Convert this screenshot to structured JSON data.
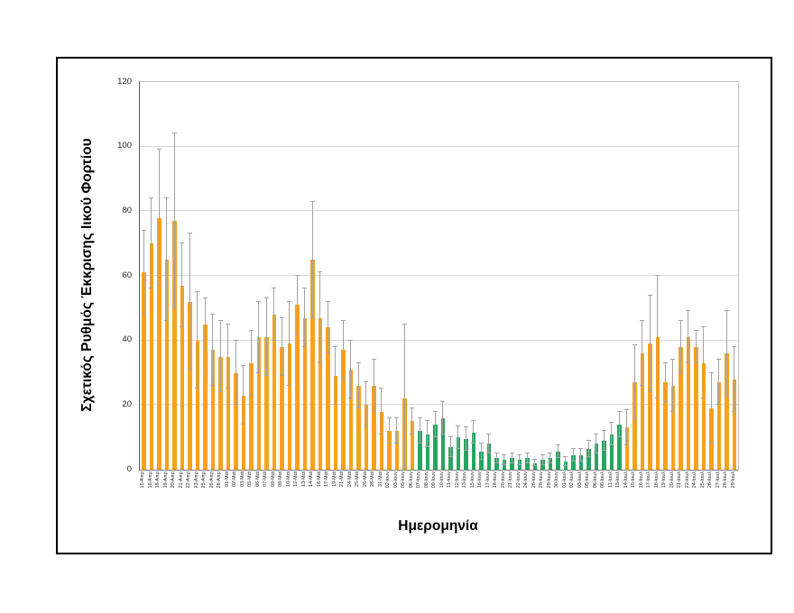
{
  "chart_data": {
    "type": "bar",
    "title": "",
    "xlabel": "Ημερομηνία",
    "ylabel": "Σχετικός Ρυθμός Έκκρισης Ιικού Φορτίου",
    "ylim": [
      0,
      120
    ],
    "yticks": [
      0,
      20,
      40,
      60,
      80,
      100,
      120
    ],
    "grid": "horizontal",
    "legend": "none",
    "error_bars": true,
    "colors": {
      "orange": "#f8a11c",
      "green": "#27a561",
      "error": "#a3a3a3"
    },
    "bars": [
      {
        "label": "15-Απρ",
        "v": 61,
        "e": 13
      },
      {
        "label": "16-Απρ",
        "v": 70,
        "e": 14
      },
      {
        "label": "18-Απρ",
        "v": 78,
        "e": 21
      },
      {
        "label": "19-Απρ",
        "v": 65,
        "e": 19
      },
      {
        "label": "20-Απρ",
        "v": 77,
        "e": 27
      },
      {
        "label": "21-Απρ",
        "v": 57,
        "e": 13
      },
      {
        "label": "22-Απρ",
        "v": 52,
        "e": 21
      },
      {
        "label": "23-Απρ",
        "v": 40,
        "e": 15
      },
      {
        "label": "25-Απρ",
        "v": 45,
        "e": 8
      },
      {
        "label": "26-Απρ",
        "v": 37,
        "e": 11
      },
      {
        "label": "28-Απρ",
        "v": 35,
        "e": 11
      },
      {
        "label": "01-Μαϊ",
        "v": 35,
        "e": 10
      },
      {
        "label": "02-Μαϊ",
        "v": 30,
        "e": 10
      },
      {
        "label": "03-Μαϊ",
        "v": 23,
        "e": 9
      },
      {
        "label": "05-Μαϊ",
        "v": 33,
        "e": 10
      },
      {
        "label": "06-Μαϊ",
        "v": 41,
        "e": 11
      },
      {
        "label": "07-Μαϊ",
        "v": 41,
        "e": 12
      },
      {
        "label": "08-Μαϊ",
        "v": 48,
        "e": 8
      },
      {
        "label": "09-Μαϊ",
        "v": 38,
        "e": 9
      },
      {
        "label": "10-Μαϊ",
        "v": 39,
        "e": 13
      },
      {
        "label": "12-Μαϊ",
        "v": 51,
        "e": 9
      },
      {
        "label": "13-Μαϊ",
        "v": 47,
        "e": 9
      },
      {
        "label": "14-Μαϊ",
        "v": 65,
        "e": 18
      },
      {
        "label": "16-Μαϊ",
        "v": 47,
        "e": 14
      },
      {
        "label": "17-Μαϊ",
        "v": 44,
        "e": 8
      },
      {
        "label": "19-Μαϊ",
        "v": 29,
        "e": 9
      },
      {
        "label": "21-Μαϊ",
        "v": 37,
        "e": 9
      },
      {
        "label": "24-Μαϊ",
        "v": 31,
        "e": 9
      },
      {
        "label": "25-Μαϊ",
        "v": 26,
        "e": 7
      },
      {
        "label": "26-Μαϊ",
        "v": 20,
        "e": 7
      },
      {
        "label": "28-Μαϊ",
        "v": 26,
        "e": 8
      },
      {
        "label": "31-Μαϊ",
        "v": 18,
        "e": 7
      },
      {
        "label": "02-Ιουν",
        "v": 12,
        "e": 4
      },
      {
        "label": "03-Ιουν",
        "v": 12,
        "e": 4
      },
      {
        "label": "05-Ιουν",
        "v": 22,
        "e": 23
      },
      {
        "label": "06-Ιουν",
        "v": 15,
        "e": 4
      },
      {
        "label": "07-Ιουν",
        "v": 12,
        "e": 4,
        "g": 1
      },
      {
        "label": "08-Ιουν",
        "v": 11,
        "e": 4,
        "g": 1
      },
      {
        "label": "09-Ιουν",
        "v": 14,
        "e": 4,
        "g": 1
      },
      {
        "label": "10-Ιουν",
        "v": 16,
        "e": 5,
        "g": 1
      },
      {
        "label": "11-Ιουν",
        "v": 7,
        "e": 3,
        "g": 1
      },
      {
        "label": "12-Ιουν",
        "v": 10,
        "e": 3.5,
        "g": 1
      },
      {
        "label": "13-Ιουν",
        "v": 9.5,
        "e": 3.5,
        "g": 1
      },
      {
        "label": "15-Ιουν",
        "v": 11.5,
        "e": 3.5,
        "g": 1
      },
      {
        "label": "16-Ιουν",
        "v": 5.5,
        "e": 2.5,
        "g": 1
      },
      {
        "label": "17-Ιουν",
        "v": 8,
        "e": 3,
        "g": 1
      },
      {
        "label": "18-Ιουν",
        "v": 3.5,
        "e": 1.5,
        "g": 1
      },
      {
        "label": "20-Ιουν",
        "v": 3,
        "e": 1.5,
        "g": 1
      },
      {
        "label": "21-Ιουν",
        "v": 3.5,
        "e": 1.5,
        "g": 1
      },
      {
        "label": "22-Ιουν",
        "v": 3,
        "e": 1.5,
        "g": 1
      },
      {
        "label": "24-Ιουν",
        "v": 3.5,
        "e": 1.5,
        "g": 1
      },
      {
        "label": "26-Ιουν",
        "v": 2,
        "e": 1,
        "g": 1
      },
      {
        "label": "28-Ιουν",
        "v": 3,
        "e": 1.5,
        "g": 1
      },
      {
        "label": "29-Ιουν",
        "v": 3.5,
        "e": 1.5,
        "g": 1
      },
      {
        "label": "30-Ιουν",
        "v": 5.5,
        "e": 2,
        "g": 1
      },
      {
        "label": "01-Ιουλ",
        "v": 2.5,
        "e": 1.5,
        "g": 1
      },
      {
        "label": "02-Ιουλ",
        "v": 4.5,
        "e": 2,
        "g": 1
      },
      {
        "label": "03-Ιουλ",
        "v": 4.5,
        "e": 2,
        "g": 1
      },
      {
        "label": "05-Ιουλ",
        "v": 6.5,
        "e": 2.5,
        "g": 1
      },
      {
        "label": "06-Ιουλ",
        "v": 8,
        "e": 3,
        "g": 1
      },
      {
        "label": "08-Ιουλ",
        "v": 9,
        "e": 3,
        "g": 1
      },
      {
        "label": "11-Ιουλ",
        "v": 11,
        "e": 3.5,
        "g": 1
      },
      {
        "label": "13-Ιουλ",
        "v": 14,
        "e": 4,
        "g": 1
      },
      {
        "label": "14-Ιουλ",
        "v": 13,
        "e": 5.5
      },
      {
        "label": "15-Ιουλ",
        "v": 27,
        "e": 11.5
      },
      {
        "label": "16-Ιουλ",
        "v": 36,
        "e": 10
      },
      {
        "label": "17-Ιουλ",
        "v": 39,
        "e": 15
      },
      {
        "label": "18-Ιουλ",
        "v": 41,
        "e": 19
      },
      {
        "label": "19-Ιουλ",
        "v": 27,
        "e": 6
      },
      {
        "label": "20-Ιουλ",
        "v": 26,
        "e": 8
      },
      {
        "label": "21-Ιουλ",
        "v": 38,
        "e": 8
      },
      {
        "label": "22-Ιουλ",
        "v": 41,
        "e": 8
      },
      {
        "label": "24-Ιουλ",
        "v": 38,
        "e": 5
      },
      {
        "label": "25-Ιουλ",
        "v": 33,
        "e": 11
      },
      {
        "label": "26-Ιουλ",
        "v": 19,
        "e": 11
      },
      {
        "label": "27-Ιουλ",
        "v": 27,
        "e": 7
      },
      {
        "label": "28-Ιουλ",
        "v": 36,
        "e": 13
      },
      {
        "label": "29-Ιουλ",
        "v": 28,
        "e": 10
      }
    ]
  }
}
